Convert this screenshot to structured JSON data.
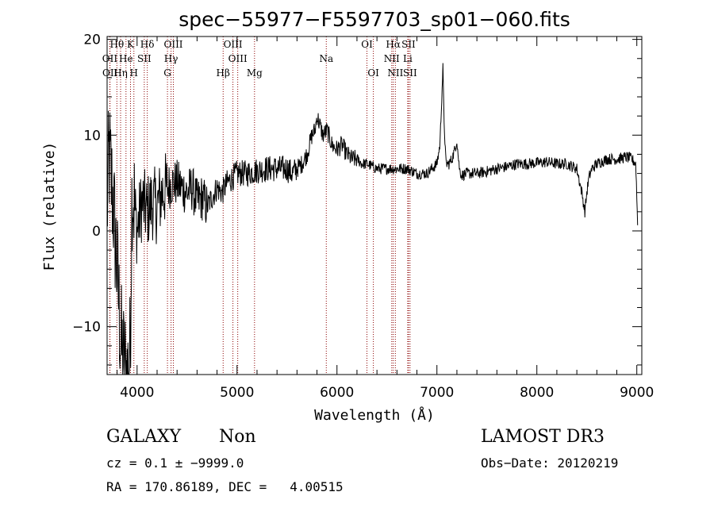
{
  "chart_data": {
    "type": "line",
    "title": "spec−55977−F5597703_sp01−060.fits",
    "xlabel": "Wavelength (Å)",
    "ylabel": "Flux (relative)",
    "xlim": [
      3700,
      9050
    ],
    "ylim": [
      -15,
      20.3
    ],
    "xticks": [
      4000,
      5000,
      6000,
      7000,
      8000,
      9000
    ],
    "xtick_labels": [
      "4000",
      "5000",
      "6000",
      "7000",
      "8000",
      "9000"
    ],
    "yticks": [
      -10,
      0,
      10,
      20
    ],
    "ytick_labels": [
      "−10",
      "0",
      "10",
      "20"
    ],
    "grid": false,
    "legend": "none",
    "line_color": "#000000",
    "marker_color": "#8b0000",
    "spectrum_anchors": {
      "x": [
        3700,
        3720,
        3760,
        3800,
        3840,
        3870,
        3900,
        3930,
        3950,
        3980,
        4000,
        4050,
        4100,
        4150,
        4200,
        4250,
        4300,
        4350,
        4400,
        4450,
        4500,
        4550,
        4600,
        4650,
        4700,
        4750,
        4800,
        4850,
        4900,
        4950,
        5000,
        5100,
        5200,
        5300,
        5400,
        5500,
        5550,
        5600,
        5650,
        5700,
        5750,
        5780,
        5800,
        5830,
        5860,
        5900,
        5950,
        6000,
        6050,
        6100,
        6150,
        6200,
        6250,
        6300,
        6400,
        6500,
        6600,
        6700,
        6800,
        6900,
        6950,
        7000,
        7030,
        7050,
        7060,
        7070,
        7090,
        7120,
        7150,
        7180,
        7200,
        7220,
        7230,
        7250,
        7300,
        7400,
        7500,
        7600,
        7700,
        7800,
        7900,
        8000,
        8100,
        8200,
        8300,
        8400,
        8450,
        8480,
        8500,
        8520,
        8550,
        8600,
        8700,
        8800,
        8900,
        8950,
        8990,
        9010
      ],
      "y": [
        2,
        8,
        3,
        -4,
        -12,
        -14,
        -15,
        -13,
        5,
        2,
        0,
        3,
        2,
        3,
        2.5,
        4,
        4.5,
        5,
        5,
        4.5,
        4,
        4.5,
        3,
        3.5,
        2.5,
        3.5,
        4.5,
        4,
        5,
        5.5,
        6,
        6,
        6.3,
        6.5,
        6.5,
        6.5,
        6,
        6.5,
        7,
        8,
        10,
        10.5,
        12,
        11,
        10,
        10.5,
        9,
        8.5,
        9,
        8,
        7.5,
        7.5,
        7,
        7,
        6.5,
        6.5,
        6.5,
        6.5,
        6,
        6,
        6.5,
        7,
        9,
        14.5,
        17,
        12,
        7,
        7,
        7.5,
        8.5,
        9.5,
        7,
        6.2,
        5.8,
        6,
        6,
        6.2,
        6.5,
        6.7,
        7,
        7,
        7.1,
        7.2,
        7,
        7,
        6.5,
        4,
        2,
        4,
        5.5,
        6.5,
        7,
        7.5,
        7.5,
        7.7,
        7.5,
        7,
        0
      ]
    },
    "annotations": [
      {
        "label": "Hθ",
        "x": 3798,
        "row": 0
      },
      {
        "label": "K",
        "x": 3934,
        "row": 0
      },
      {
        "label": "Hδ",
        "x": 4102,
        "row": 0
      },
      {
        "label": "OIII",
        "x": 4363,
        "row": 0
      },
      {
        "label": "OIII",
        "x": 4959,
        "row": 0
      },
      {
        "label": "OI",
        "x": 6300,
        "row": 0
      },
      {
        "label": "Hα",
        "x": 6563,
        "row": 0
      },
      {
        "label": "SII",
        "x": 6716,
        "row": 0
      },
      {
        "label": "OII",
        "x": 3727,
        "row": 1
      },
      {
        "label": "He",
        "x": 3889,
        "row": 1
      },
      {
        "label": "SII",
        "x": 4072,
        "row": 1
      },
      {
        "label": "Hγ",
        "x": 4340,
        "row": 1
      },
      {
        "label": "OIII",
        "x": 5007,
        "row": 1
      },
      {
        "label": "Na",
        "x": 5893,
        "row": 1
      },
      {
        "label": "NII",
        "x": 6548,
        "row": 1
      },
      {
        "label": "Li",
        "x": 6708,
        "row": 1
      },
      {
        "label": "OII",
        "x": 3729,
        "row": 2
      },
      {
        "label": "Hη",
        "x": 3835,
        "row": 2
      },
      {
        "label": "H",
        "x": 3968,
        "row": 2
      },
      {
        "label": "G",
        "x": 4304,
        "row": 2
      },
      {
        "label": "Hβ",
        "x": 4861,
        "row": 2
      },
      {
        "label": "Mg",
        "x": 5175,
        "row": 2
      },
      {
        "label": "OI",
        "x": 6364,
        "row": 2
      },
      {
        "label": "NII",
        "x": 6584,
        "row": 2
      },
      {
        "label": "SII",
        "x": 6731,
        "row": 2
      }
    ]
  },
  "info": {
    "object_class": "GALAXY",
    "subclass": "Non",
    "survey": "LAMOST DR3",
    "redshift_line": "cz = 0.1 ± −9999.0",
    "obs_date_line": "Obs−Date: 20120219",
    "coords_line": "RA = 170.86189, DEC =   4.00515"
  }
}
